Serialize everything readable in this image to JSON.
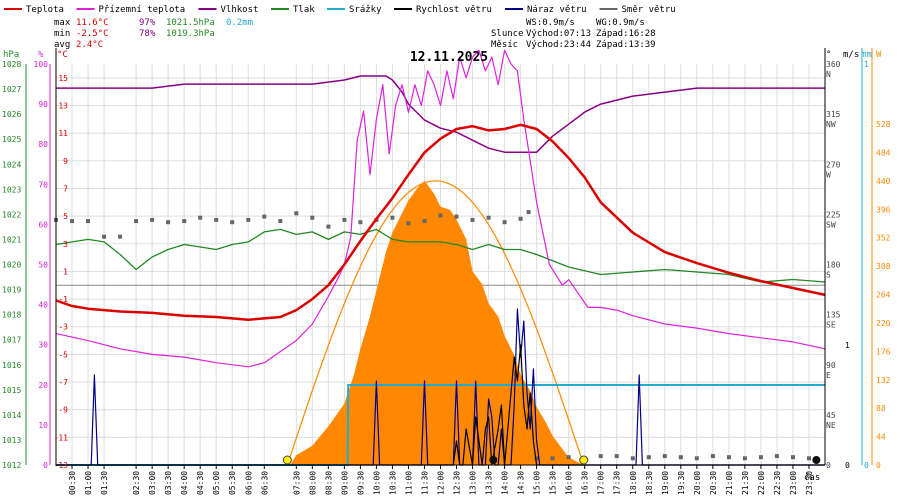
{
  "chart_data": {
    "type": "line",
    "title": "12.11.2025",
    "xlabel": "čas",
    "legend": [
      {
        "name": "Teplota",
        "color": "#dd0000"
      },
      {
        "name": "Přízemní teplota",
        "color": "#dd22dd"
      },
      {
        "name": "Vlhkost",
        "color": "#880088"
      },
      {
        "name": "Tlak",
        "color": "#228822"
      },
      {
        "name": "Srážky",
        "color": "#22aacc"
      },
      {
        "name": "Rychlost větru",
        "color": "#000000"
      },
      {
        "name": "Náraz větru",
        "color": "#000088"
      },
      {
        "name": "Směr větru",
        "color": "#666666"
      }
    ],
    "stats": {
      "max_label": "max",
      "max_temp": "11.6°C",
      "max_hum": "97%",
      "max_press": "1021.5hPa",
      "max_rain": "0.2mm",
      "min_label": "min",
      "min_temp": "-2.5°C",
      "min_hum": "78%",
      "min_press": "1019.3hPa",
      "avg_label": "avg",
      "avg_temp": "2.4°C"
    },
    "info": {
      "ws": "WS:0.9m/s",
      "wg": "WG:0.9m/s",
      "sun_label": "Slunce",
      "sunrise": "Východ:07:13",
      "sunset": "Západ:16:28",
      "moon_label": "Měsíc",
      "moonrise": "Východ:23:44",
      "moonset": "Západ:13:39"
    },
    "axes": {
      "hpa_unit": "hPa",
      "pct_unit": "%",
      "c_unit": "°C",
      "deg_unit": "°",
      "ms_unit": "m/s",
      "mm_unit": "mm",
      "w_unit": "W",
      "hpa_ticks": [
        "1028",
        "1027",
        "1026",
        "1025",
        "1024",
        "1023",
        "1022",
        "1021",
        "1020",
        "1019",
        "1018",
        "1017",
        "1016",
        "1015",
        "1014",
        "1013",
        "1012"
      ],
      "pct_ticks": [
        "100",
        "90",
        "80",
        "70",
        "60",
        "50",
        "40",
        "30",
        "20",
        "10",
        "0"
      ],
      "c_ticks": [
        "15",
        "13",
        "11",
        "9",
        "7",
        "5",
        "3",
        "1",
        "-1",
        "-3",
        "-5",
        "-7",
        "-9",
        "-11",
        "-13"
      ],
      "dir_ticks": [
        {
          "v": 360,
          "deg": "360",
          "lab": "N"
        },
        {
          "v": 315,
          "deg": "315",
          "lab": "NW"
        },
        {
          "v": 270,
          "deg": "270",
          "lab": "W"
        },
        {
          "v": 225,
          "deg": "225",
          "lab": "SW"
        },
        {
          "v": 180,
          "deg": "180",
          "lab": "S"
        },
        {
          "v": 135,
          "deg": "135",
          "lab": "SE"
        },
        {
          "v": 90,
          "deg": "90",
          "lab": "E"
        },
        {
          "v": 45,
          "deg": "45",
          "lab": "NE"
        },
        {
          "v": 0,
          "deg": "0",
          "lab": ""
        }
      ],
      "ms_ticks": [
        "1",
        "0"
      ],
      "mm_ticks": [
        "1",
        "0"
      ],
      "w_ticks": [
        "528",
        "484",
        "440",
        "396",
        "352",
        "308",
        "264",
        "220",
        "176",
        "132",
        "88",
        "44",
        "0"
      ],
      "time_ticks": [
        "00:30",
        "01:00",
        "01:30",
        "02:30",
        "03:00",
        "03:30",
        "04:00",
        "04:30",
        "05:00",
        "05:30",
        "06:00",
        "06:30",
        "07:30",
        "08:00",
        "08:30",
        "09:00",
        "09:30",
        "10:00",
        "10:30",
        "11:00",
        "11:30",
        "12:00",
        "12:30",
        "13:00",
        "13:30",
        "14:00",
        "14:30",
        "15:00",
        "15:30",
        "16:00",
        "16:30",
        "17:00",
        "17:30",
        "18:00",
        "18:30",
        "19:00",
        "19:30",
        "20:00",
        "20:30",
        "21:00",
        "21:30",
        "22:00",
        "22:30",
        "23:00",
        "23:30"
      ]
    },
    "ranges": {
      "hpa": [
        1012,
        1028
      ],
      "pct": [
        0,
        100
      ],
      "c": [
        -13,
        16
      ],
      "dir": [
        0,
        360
      ],
      "w": [
        0,
        528
      ],
      "hours": [
        0,
        24
      ]
    },
    "colors": {
      "temp": "#dd0000",
      "ground": "#dd22dd",
      "hum": "#880088",
      "press": "#228822",
      "rain": "#22aacc",
      "wind": "#000000",
      "gust": "#000088",
      "dir": "#666666",
      "solar": "#ff8800",
      "grid": "#dddddd"
    },
    "series": {
      "temperature": {
        "x": [
          0,
          0.5,
          1,
          2,
          3,
          4,
          5,
          6,
          7,
          7.5,
          8,
          8.5,
          9,
          9.5,
          10,
          10.5,
          11,
          11.5,
          12,
          12.5,
          13,
          13.5,
          14,
          14.5,
          15,
          15.5,
          16,
          16.5,
          17,
          18,
          19,
          20,
          21,
          22,
          23,
          24
        ],
        "y": [
          -1.1,
          -1.5,
          -1.7,
          -1.9,
          -2.0,
          -2.2,
          -2.3,
          -2.5,
          -2.3,
          -1.8,
          -1.0,
          0,
          1.5,
          3.2,
          4.8,
          6.3,
          8.0,
          9.6,
          10.6,
          11.3,
          11.5,
          11.2,
          11.3,
          11.6,
          11.3,
          10.4,
          9.2,
          7.8,
          6.0,
          3.8,
          2.4,
          1.6,
          0.9,
          0.3,
          -0.2,
          -0.7
        ]
      },
      "ground_temperature": {
        "x": [
          0,
          1,
          2,
          3,
          4,
          5,
          6,
          6.5,
          7,
          7.5,
          8,
          8.5,
          8.8,
          9.0,
          9.2,
          9.4,
          9.6,
          9.8,
          10.0,
          10.2,
          10.4,
          10.6,
          10.8,
          11.0,
          11.2,
          11.4,
          11.6,
          11.8,
          12.0,
          12.2,
          12.4,
          12.6,
          12.8,
          13.0,
          13.2,
          13.4,
          13.6,
          13.8,
          14.0,
          14.2,
          14.4,
          14.6,
          15.0,
          15.4,
          15.8,
          16.0,
          16.3,
          16.6,
          17,
          17.5,
          18,
          19,
          20,
          21,
          22,
          23,
          24
        ],
        "y": [
          -3.5,
          -4.0,
          -4.6,
          -5.0,
          -5.2,
          -5.6,
          -5.9,
          -5.6,
          -4.8,
          -4.0,
          -2.8,
          -0.8,
          0.5,
          1.5,
          3.5,
          10.5,
          12.6,
          8.0,
          12.0,
          14.5,
          9.5,
          13.0,
          14.5,
          12.5,
          14.5,
          13.0,
          15.5,
          14.5,
          13.0,
          15.5,
          13.5,
          16.5,
          15.0,
          16.5,
          17.0,
          15.5,
          16.5,
          14.5,
          17.0,
          16.0,
          15.5,
          12.0,
          6.0,
          1.5,
          0.0,
          0.4,
          -0.6,
          -1.6,
          -1.6,
          -1.8,
          -2.2,
          -2.8,
          -3.1,
          -3.5,
          -3.8,
          -4.1,
          -4.6
        ]
      },
      "humidity": {
        "x": [
          0,
          1,
          2,
          3,
          4,
          5,
          6,
          7,
          8,
          9,
          9.5,
          10,
          10.3,
          10.5,
          10.8,
          11,
          11.5,
          12,
          12.5,
          13,
          13.5,
          14,
          14.5,
          15,
          15.5,
          16,
          16.5,
          17,
          18,
          19,
          20,
          21,
          22,
          23,
          24
        ],
        "y": [
          94,
          94,
          94,
          94,
          95,
          95,
          95,
          95,
          95,
          96,
          97,
          97,
          97,
          96,
          93,
          90,
          86,
          84,
          83,
          81,
          79,
          78,
          78,
          78,
          82,
          85,
          88,
          90,
          92,
          93,
          94,
          94,
          94,
          94,
          94
        ]
      },
      "pressure": {
        "x": [
          0,
          1,
          1.5,
          2,
          2.5,
          3,
          3.5,
          4,
          4.5,
          5,
          5.5,
          6,
          6.5,
          7,
          7.5,
          8,
          8.5,
          9,
          9.5,
          10,
          10.5,
          11,
          11.5,
          12,
          12.5,
          13,
          13.5,
          14,
          14.5,
          15,
          16,
          17,
          18,
          19,
          20,
          21,
          22,
          23,
          24
        ],
        "y": [
          1020.8,
          1021.0,
          1020.9,
          1020.4,
          1019.8,
          1020.3,
          1020.6,
          1020.8,
          1020.7,
          1020.6,
          1020.8,
          1020.9,
          1021.3,
          1021.4,
          1021.2,
          1021.3,
          1021.0,
          1021.3,
          1021.2,
          1021.4,
          1021.0,
          1020.9,
          1020.9,
          1020.9,
          1020.8,
          1020.6,
          1020.8,
          1020.6,
          1020.6,
          1020.4,
          1019.9,
          1019.6,
          1019.7,
          1019.8,
          1019.7,
          1019.6,
          1019.3,
          1019.4,
          1019.3
        ]
      },
      "rain": {
        "x": [
          0,
          9.1,
          9.12,
          24
        ],
        "y": [
          0,
          0,
          0.2,
          0.2
        ]
      },
      "wind_speed": {
        "x": [
          0,
          12.4,
          12.5,
          12.6,
          12.7,
          12.8,
          13.0,
          13.1,
          13.3,
          13.4,
          13.5,
          13.6,
          13.8,
          13.9,
          14.0,
          14.2,
          14.3,
          14.4,
          14.5,
          14.6,
          14.7,
          14.8,
          14.9,
          15.0,
          24
        ],
        "y": [
          0,
          0,
          0.2,
          0,
          0,
          0.3,
          0,
          0.4,
          0,
          0.3,
          0.4,
          0,
          0.3,
          0.5,
          0,
          0.6,
          0.9,
          0.7,
          1.0,
          0.5,
          0.3,
          0.6,
          0.2,
          0,
          0
        ]
      },
      "wind_gust": {
        "x": [
          0,
          1.1,
          1.2,
          1.3,
          1.4,
          9.9,
          10.0,
          10.1,
          10.2,
          10.3,
          11.4,
          11.5,
          11.6,
          11.7,
          12.4,
          12.5,
          12.6,
          12.7,
          13.0,
          13.1,
          13.2,
          13.3,
          13.4,
          13.5,
          13.6,
          13.7,
          13.8,
          13.9,
          14.0,
          14.1,
          14.2,
          14.3,
          14.4,
          14.5,
          14.6,
          14.7,
          14.8,
          14.9,
          15.0,
          15.1,
          18.1,
          18.2,
          18.3,
          18.4,
          24
        ],
        "y": [
          0,
          0,
          0.75,
          0,
          0,
          0,
          0.7,
          0,
          0,
          0,
          0,
          0.7,
          0,
          0,
          0,
          0.7,
          0,
          0,
          0,
          0.7,
          0,
          0,
          0,
          0.55,
          0.4,
          0,
          0,
          0.3,
          0,
          0,
          0,
          0.5,
          1.3,
          0.9,
          1.2,
          0.6,
          0.3,
          0.8,
          0.2,
          0,
          0,
          0.75,
          0,
          0,
          0
        ]
      },
      "wind_direction": {
        "x": [
          0,
          0.5,
          1,
          1.5,
          2,
          2.5,
          3,
          3.5,
          4,
          4.5,
          5,
          5.5,
          6,
          6.5,
          7,
          7.5,
          8,
          8.5,
          9,
          9.5,
          10,
          10.5,
          11,
          11.5,
          12,
          12.5,
          13,
          13.5,
          14,
          14.5,
          14.75,
          15,
          15.5,
          16,
          16.5,
          17,
          17.5,
          18,
          18.5,
          19,
          19.5,
          20,
          20.5,
          21,
          21.5,
          22,
          22.5,
          23,
          23.5
        ],
        "y": [
          220,
          219,
          219,
          205,
          205,
          219,
          220,
          218,
          219,
          222,
          220,
          218,
          220,
          223,
          219,
          226,
          222,
          214,
          220,
          218,
          220,
          222,
          217,
          219,
          224,
          223,
          220,
          222,
          218,
          221,
          227,
          6,
          6,
          7,
          6,
          8,
          8,
          6,
          7,
          8,
          7,
          6,
          8,
          7,
          6,
          7,
          8,
          7,
          6
        ]
      },
      "solar": {
        "x": [
          7.3,
          7.5,
          8,
          8.5,
          9,
          9.3,
          9.5,
          9.8,
          10,
          10.3,
          10.5,
          10.8,
          11,
          11.3,
          11.5,
          11.8,
          12,
          12.3,
          12.5,
          12.8,
          13,
          13.3,
          13.5,
          13.8,
          14,
          14.3,
          14.5,
          14.8,
          15,
          15.3,
          15.5,
          15.8,
          16,
          16.3,
          16.5
        ],
        "y": [
          0,
          15,
          30,
          60,
          95,
          140,
          180,
          230,
          270,
          330,
          360,
          390,
          410,
          430,
          440,
          420,
          400,
          395,
          380,
          350,
          300,
          280,
          250,
          230,
          200,
          170,
          140,
          115,
          90,
          65,
          45,
          25,
          12,
          4,
          0
        ]
      },
      "solar_max": {
        "peak": 440,
        "start": 7.22,
        "end": 16.47
      }
    },
    "markers": {
      "sunrise_hour": 7.22,
      "sunset_hour": 16.47,
      "moonrise_hour": 23.73,
      "moonset_hour": 13.65
    }
  }
}
